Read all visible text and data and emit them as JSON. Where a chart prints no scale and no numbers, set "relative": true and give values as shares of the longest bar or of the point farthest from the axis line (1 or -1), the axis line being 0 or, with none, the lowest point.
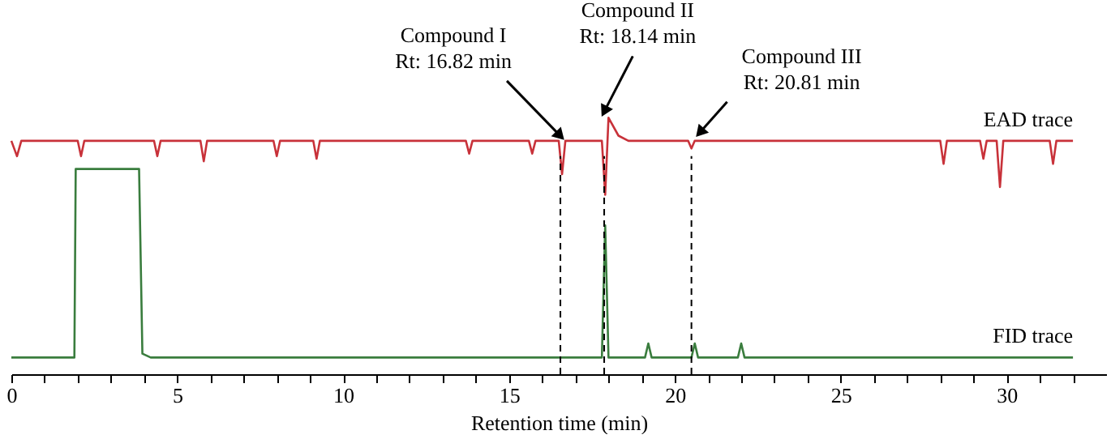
{
  "chart_data": {
    "type": "line",
    "xlabel": "Retention time (min)",
    "relative": true,
    "grid": false,
    "legend": false,
    "marker": "none",
    "line_style": "solid",
    "xlim": [
      0,
      33
    ],
    "xticks": [
      0,
      {
        "value": 1,
        "label": null
      },
      {
        "value": 2,
        "label": null
      },
      {
        "value": 3,
        "label": null
      },
      {
        "value": 4,
        "label": null
      },
      5,
      {
        "value": 6,
        "label": null
      },
      {
        "value": 7,
        "label": null
      },
      {
        "value": 8,
        "label": null
      },
      {
        "value": 9,
        "label": null
      },
      10,
      {
        "value": 11,
        "label": null
      },
      {
        "value": 12,
        "label": null
      },
      {
        "value": 13,
        "label": null
      },
      {
        "value": 14,
        "label": null
      },
      15,
      {
        "value": 16,
        "label": null
      },
      {
        "value": 17,
        "label": null
      },
      {
        "value": 18,
        "label": null
      },
      {
        "value": 19,
        "label": null
      },
      20,
      {
        "value": 21,
        "label": null
      },
      {
        "value": 22,
        "label": null
      },
      {
        "value": 23,
        "label": null
      },
      {
        "value": 24,
        "label": null
      },
      25,
      {
        "value": 26,
        "label": null
      },
      {
        "value": 27,
        "label": null
      },
      {
        "value": 28,
        "label": null
      },
      {
        "value": 29,
        "label": null
      },
      30,
      {
        "value": 31,
        "label": null
      },
      {
        "value": 32,
        "label": null
      }
    ],
    "series": [
      {
        "name": "EAD trace",
        "color": "#c8323a",
        "x": [
          0,
          0.17,
          0.3,
          2.0,
          2.1,
          2.2,
          4.3,
          4.4,
          4.5,
          5.7,
          5.8,
          5.9,
          7.9,
          8.0,
          8.1,
          9.1,
          9.2,
          9.3,
          13.7,
          13.8,
          13.9,
          15.6,
          15.7,
          15.8,
          16.5,
          16.6,
          16.7,
          17.8,
          17.9,
          18.0,
          18.3,
          18.6,
          20.4,
          20.5,
          20.6,
          28.0,
          28.1,
          28.2,
          29.2,
          29.3,
          29.4,
          29.7,
          29.8,
          29.9,
          31.3,
          31.4,
          31.5,
          32.0
        ],
        "values": [
          0.91,
          0.85,
          0.91,
          0.91,
          0.85,
          0.91,
          0.91,
          0.85,
          0.91,
          0.91,
          0.83,
          0.91,
          0.91,
          0.85,
          0.91,
          0.91,
          0.84,
          0.91,
          0.91,
          0.86,
          0.91,
          0.91,
          0.86,
          0.91,
          0.91,
          0.78,
          0.91,
          0.91,
          0.7,
          1.0,
          0.93,
          0.91,
          0.91,
          0.88,
          0.91,
          0.91,
          0.82,
          0.91,
          0.91,
          0.84,
          0.91,
          0.91,
          0.73,
          0.91,
          0.91,
          0.82,
          0.91,
          0.91
        ]
      },
      {
        "name": "FID trace",
        "color": "#3a7d3e",
        "x": [
          0,
          1.9,
          1.94,
          3.85,
          3.95,
          4.2,
          17.8,
          17.9,
          18.0,
          19.1,
          19.2,
          19.3,
          20.5,
          20.6,
          20.7,
          21.9,
          22.0,
          22.1,
          32.0
        ],
        "values": [
          0.065,
          0.065,
          0.8,
          0.8,
          0.08,
          0.065,
          0.065,
          0.58,
          0.065,
          0.065,
          0.12,
          0.065,
          0.065,
          0.12,
          0.065,
          0.065,
          0.12,
          0.065,
          0.065
        ]
      }
    ],
    "ref_lines": [
      {
        "axis": "x",
        "value": 16.55,
        "line_style": "dashed",
        "color": "#000000"
      },
      {
        "axis": "x",
        "value": 17.87,
        "line_style": "dashed",
        "color": "#000000"
      },
      {
        "axis": "x",
        "value": 20.5,
        "line_style": "dashed",
        "color": "#000000"
      }
    ],
    "annotations": [
      {
        "text": "Compound I\nRt: 16.82 min",
        "x": 16.55,
        "y": 0.91
      },
      {
        "text": "Compound II\nRt: 18.14 min",
        "x": 17.95,
        "y": 1.0
      },
      {
        "text": "Compound III\nRt: 20.81 min",
        "x": 20.5,
        "y": 0.91
      }
    ]
  }
}
